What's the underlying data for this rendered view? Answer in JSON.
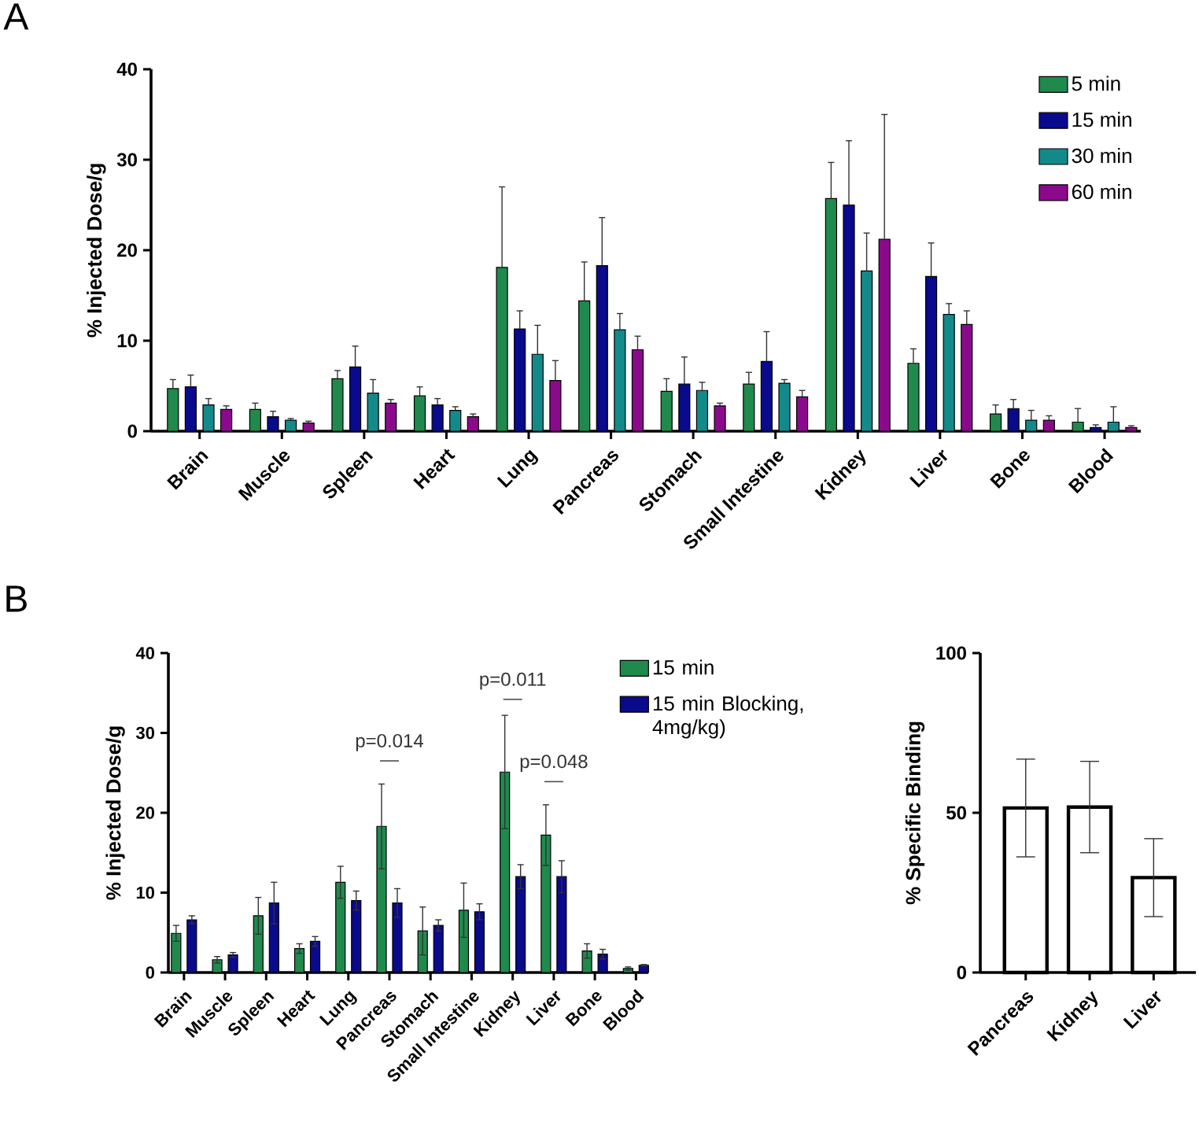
{
  "chart_data": [
    {
      "type": "bar",
      "title": "A",
      "ylabel": "% Injected Dose/g",
      "categories": [
        "Brain",
        "Muscle",
        "Spleen",
        "Heart",
        "Lung",
        "Pancreas",
        "Stomach",
        "Small Intestine",
        "Kidney",
        "Liver",
        "Bone",
        "Blood"
      ],
      "ylim": [
        0,
        40
      ],
      "yticks": [
        0,
        10,
        20,
        30,
        40
      ],
      "legend": "top right",
      "series": [
        {
          "name": "5 min",
          "color": "#1f8a4c",
          "values": [
            4.7,
            2.4,
            5.8,
            3.9,
            18.1,
            14.4,
            4.4,
            5.2,
            25.7,
            7.5,
            1.9,
            1.0
          ],
          "errors": [
            [
              4.7,
              5.7
            ],
            [
              2.4,
              3.1
            ],
            [
              5.8,
              6.7
            ],
            [
              3.9,
              4.9
            ],
            [
              18.1,
              27.0
            ],
            [
              14.4,
              18.7
            ],
            [
              4.4,
              5.8
            ],
            [
              5.2,
              6.5
            ],
            [
              25.7,
              29.7
            ],
            [
              7.5,
              9.1
            ],
            [
              1.9,
              2.9
            ],
            [
              1.0,
              2.5
            ]
          ]
        },
        {
          "name": "15 min",
          "color": "#0a0a8c",
          "values": [
            4.9,
            1.6,
            7.1,
            2.9,
            11.3,
            18.3,
            5.2,
            7.7,
            25.0,
            17.1,
            2.5,
            0.4
          ],
          "errors": [
            [
              4.9,
              6.2
            ],
            [
              1.6,
              2.2
            ],
            [
              7.1,
              9.4
            ],
            [
              2.9,
              3.6
            ],
            [
              11.3,
              13.3
            ],
            [
              18.3,
              23.6
            ],
            [
              5.2,
              8.2
            ],
            [
              7.7,
              11.0
            ],
            [
              25.0,
              32.1
            ],
            [
              17.1,
              20.8
            ],
            [
              2.5,
              3.5
            ],
            [
              0.4,
              0.7
            ]
          ]
        },
        {
          "name": "30 min",
          "color": "#138a8a",
          "values": [
            2.9,
            1.2,
            4.2,
            2.3,
            8.5,
            11.2,
            4.5,
            5.3,
            17.7,
            12.9,
            1.2,
            1.0
          ],
          "errors": [
            [
              2.9,
              3.6
            ],
            [
              1.2,
              1.4
            ],
            [
              4.2,
              5.7
            ],
            [
              2.3,
              2.7
            ],
            [
              8.5,
              11.7
            ],
            [
              11.2,
              13.0
            ],
            [
              4.5,
              5.4
            ],
            [
              5.3,
              5.7
            ],
            [
              17.7,
              21.9
            ],
            [
              12.9,
              14.1
            ],
            [
              1.2,
              2.3
            ],
            [
              1.0,
              2.7
            ]
          ]
        },
        {
          "name": "60 min",
          "color": "#8b0a8b",
          "values": [
            2.4,
            0.9,
            3.1,
            1.6,
            5.6,
            9.0,
            2.8,
            3.8,
            21.2,
            11.8,
            1.2,
            0.4
          ],
          "errors": [
            [
              2.4,
              2.8
            ],
            [
              0.9,
              1.1
            ],
            [
              3.1,
              3.5
            ],
            [
              1.6,
              1.9
            ],
            [
              5.6,
              7.8
            ],
            [
              9.0,
              10.5
            ],
            [
              2.8,
              3.1
            ],
            [
              3.8,
              4.5
            ],
            [
              21.2,
              35.0
            ],
            [
              11.8,
              13.3
            ],
            [
              1.2,
              1.7
            ],
            [
              0.4,
              0.6
            ]
          ]
        }
      ]
    },
    {
      "type": "bar",
      "title": "B",
      "ylabel": "% Injected Dose/g",
      "categories": [
        "Brain",
        "Muscle",
        "Spleen",
        "Heart",
        "Lung",
        "Pancreas",
        "Stomach",
        "Small Intestine",
        "Kidney",
        "Liver",
        "Bone",
        "Blood"
      ],
      "ylim": [
        0,
        40
      ],
      "yticks": [
        0,
        10,
        20,
        30,
        40
      ],
      "legend": "top right",
      "annotations": [
        "p=0.014",
        "p=0.011",
        "p=0.048"
      ],
      "series": [
        {
          "name": "15 min",
          "color": "#1f8a4c",
          "values": [
            4.9,
            1.6,
            7.1,
            3.0,
            11.3,
            18.3,
            5.2,
            7.8,
            25.1,
            17.2,
            2.7,
            0.5
          ],
          "errors": [
            1.0,
            0.4,
            2.3,
            0.6,
            2.0,
            5.3,
            3.0,
            3.4,
            7.1,
            3.8,
            0.9,
            0.2
          ]
        },
        {
          "name": "15 min Blocking, 4mg/kg)",
          "color": "#0a0a8c",
          "values": [
            6.6,
            2.2,
            8.7,
            3.9,
            9.0,
            8.7,
            5.9,
            7.6,
            12.0,
            12.0,
            2.3,
            0.9
          ],
          "errors": [
            0.5,
            0.3,
            2.6,
            0.6,
            1.2,
            1.8,
            0.7,
            1.0,
            1.5,
            2.0,
            0.6,
            0.1
          ]
        }
      ]
    },
    {
      "type": "bar",
      "ylabel": "% Specific Binding",
      "categories": [
        "Pancreas",
        "Kidney",
        "Liver"
      ],
      "ylim": [
        0,
        100
      ],
      "yticks": [
        0,
        50,
        100
      ],
      "series": [
        {
          "color": "#ffffff",
          "values": [
            51.5,
            51.8,
            29.7
          ],
          "errors": [
            15.3,
            14.3,
            12.2
          ]
        }
      ]
    }
  ]
}
